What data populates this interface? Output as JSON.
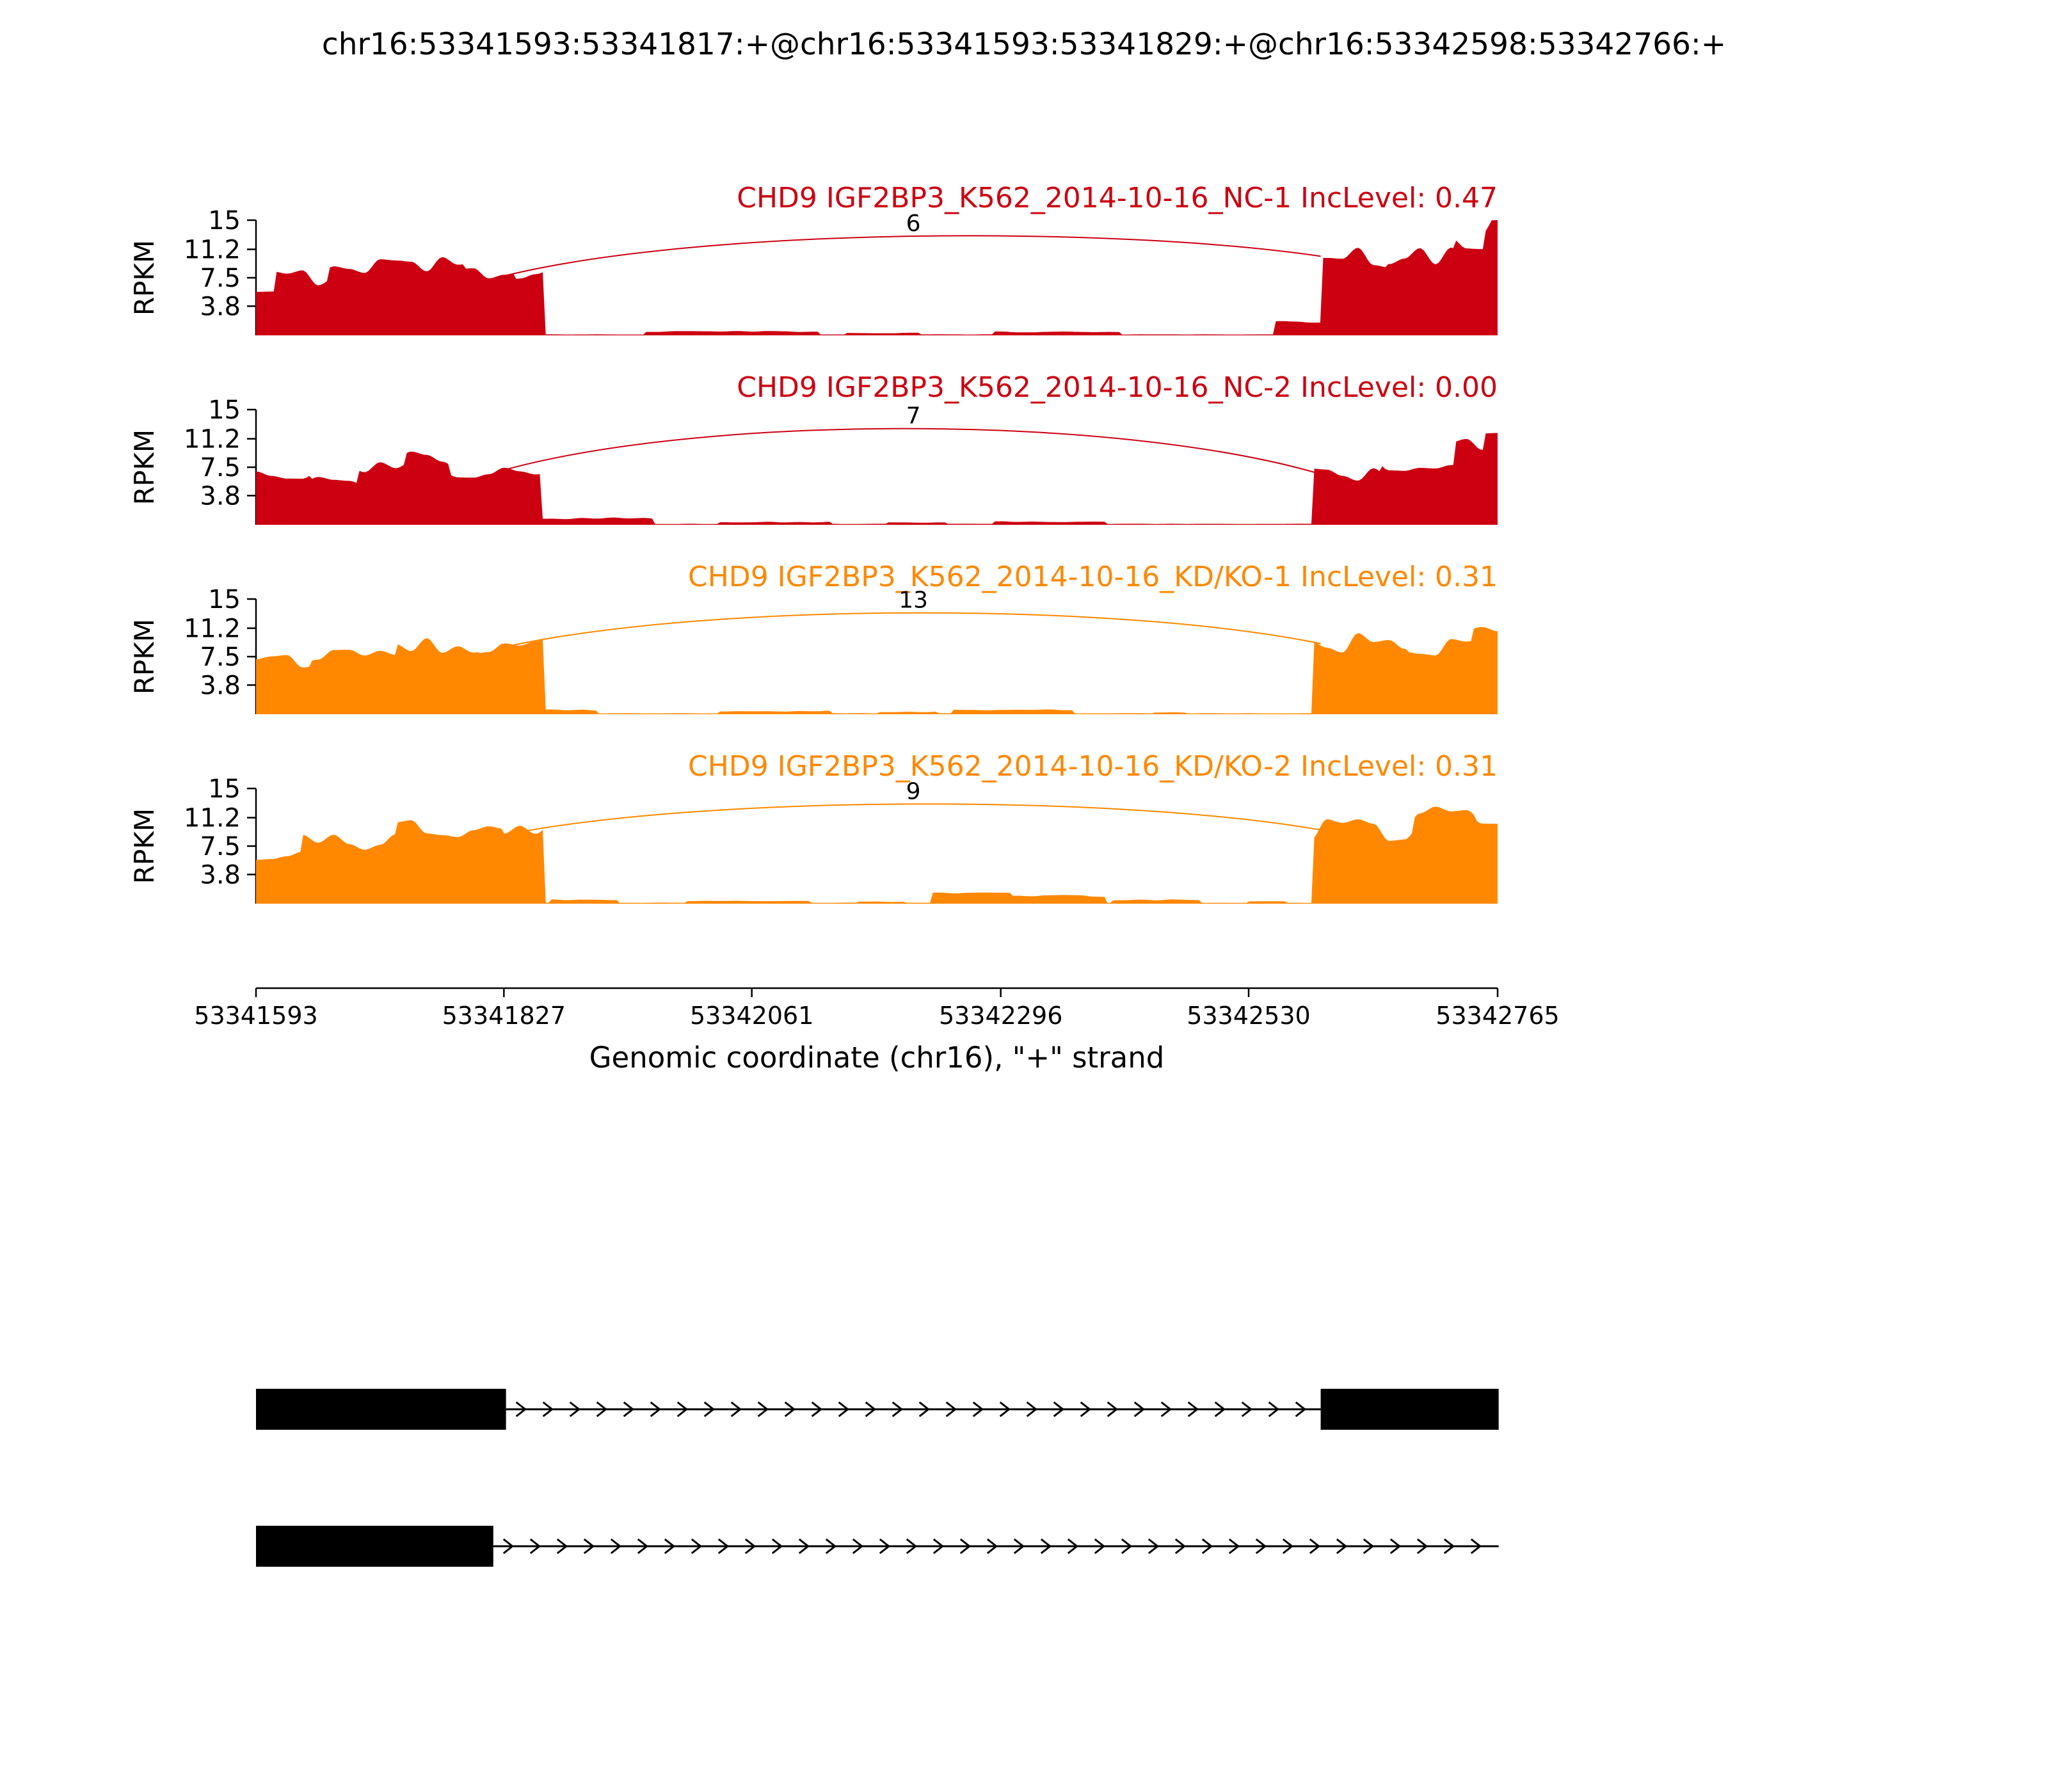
{
  "title": "chr16:53341593:53341817:+@chr16:53341593:53341829:+@chr16:53342598:53342766:+",
  "colors": {
    "group1": "#CC0011",
    "group2": "#FF8800",
    "text": "#000000"
  },
  "axis": {
    "ylabel": "RPKM",
    "yticks": [
      15,
      11.2,
      7.5,
      3.8
    ],
    "ymax": 15,
    "xlabel": "Genomic coordinate (chr16), \"+\" strand",
    "xticks": [
      53341593,
      53341827,
      53342061,
      53342296,
      53342530,
      53342765
    ],
    "xmin": 53341593,
    "xmax": 53342765
  },
  "chart_data": {
    "type": "area",
    "subtype": "sashimi-coverage",
    "x_units": "genomic coordinate (chr16, + strand)",
    "y_units": "RPKM",
    "tracks": [
      {
        "label": "CHD9 IGF2BP3_K562_2014-10-16_NC-1 IncLevel: 0.47",
        "inc_level": 0.47,
        "color": "#CC0011",
        "junction": {
          "start": 53341829,
          "end": 53342598,
          "count": 6,
          "start_rpkm": 7.8,
          "end_rpkm": 10.3,
          "apex_rpkm": 14.2
        },
        "coverage": [
          [
            53341593,
            53341612,
            5.2
          ],
          [
            53341612,
            53341660,
            7.6
          ],
          [
            53341660,
            53341790,
            9.2
          ],
          [
            53341790,
            53341838,
            8.6
          ],
          [
            53341838,
            53341864,
            7.8
          ],
          [
            53341960,
            53342125,
            0.5
          ],
          [
            53342150,
            53342220,
            0.32
          ],
          [
            53342290,
            53342410,
            0.45
          ],
          [
            53342555,
            53342598,
            1.7
          ],
          [
            53342598,
            53342660,
            10.3
          ],
          [
            53342660,
            53342725,
            10.8
          ],
          [
            53342725,
            53342752,
            12.0
          ],
          [
            53342752,
            53342766,
            14.2
          ]
        ]
      },
      {
        "label": "CHD9 IGF2BP3_K562_2014-10-16_NC-2 IncLevel: 0.00",
        "inc_level": 0.0,
        "color": "#CC0011",
        "junction": {
          "start": 53341829,
          "end": 53342598,
          "count": 7,
          "start_rpkm": 7.2,
          "end_rpkm": 6.6,
          "apex_rpkm": 14.4
        },
        "coverage": [
          [
            53341593,
            53341645,
            6.2
          ],
          [
            53341645,
            53341690,
            5.6
          ],
          [
            53341690,
            53341735,
            7.4
          ],
          [
            53341735,
            53341775,
            8.6
          ],
          [
            53341775,
            53341862,
            7.2
          ],
          [
            53341862,
            53341968,
            0.85
          ],
          [
            53342030,
            53342135,
            0.35
          ],
          [
            53342190,
            53342245,
            0.3
          ],
          [
            53342290,
            53342395,
            0.42
          ],
          [
            53342590,
            53342655,
            6.6
          ],
          [
            53342655,
            53342725,
            7.6
          ],
          [
            53342725,
            53342752,
            10.5
          ],
          [
            53342752,
            53342766,
            12.8
          ]
        ]
      },
      {
        "label": "CHD9 IGF2BP3_K562_2014-10-16_KD/KO-1 IncLevel: 0.31",
        "inc_level": 0.31,
        "color": "#FF8800",
        "junction": {
          "start": 53341829,
          "end": 53342598,
          "count": 13,
          "start_rpkm": 8.8,
          "end_rpkm": 9.2,
          "apex_rpkm": 14.6
        },
        "coverage": [
          [
            53341593,
            53341645,
            6.8
          ],
          [
            53341645,
            53341725,
            7.6
          ],
          [
            53341725,
            53341805,
            9.0
          ],
          [
            53341805,
            53341866,
            8.8
          ],
          [
            53341866,
            53341915,
            0.55
          ],
          [
            53342030,
            53342135,
            0.4
          ],
          [
            53342180,
            53342235,
            0.3
          ],
          [
            53342250,
            53342365,
            0.6
          ],
          [
            53342440,
            53342470,
            0.25
          ],
          [
            53342590,
            53342680,
            9.2
          ],
          [
            53342680,
            53342740,
            8.8
          ],
          [
            53342740,
            53342766,
            10.2
          ]
        ]
      },
      {
        "label": "CHD9 IGF2BP3_K562_2014-10-16_KD/KO-2 IncLevel: 0.31",
        "inc_level": 0.31,
        "color": "#FF8800",
        "junction": {
          "start": 53341829,
          "end": 53342598,
          "count": 9,
          "start_rpkm": 9.0,
          "end_rpkm": 9.6,
          "apex_rpkm": 14.2
        },
        "coverage": [
          [
            53341593,
            53341635,
            6.2
          ],
          [
            53341635,
            53341725,
            8.2
          ],
          [
            53341725,
            53341825,
            9.6
          ],
          [
            53341825,
            53341864,
            9.0
          ],
          [
            53341870,
            53341935,
            0.5
          ],
          [
            53342000,
            53342115,
            0.35
          ],
          [
            53342160,
            53342205,
            0.25
          ],
          [
            53342230,
            53342305,
            1.35
          ],
          [
            53342305,
            53342395,
            1.0
          ],
          [
            53342400,
            53342485,
            0.5
          ],
          [
            53342530,
            53342565,
            0.3
          ],
          [
            53342590,
            53342685,
            9.6
          ],
          [
            53342685,
            53342745,
            11.2
          ],
          [
            53342745,
            53342766,
            10.8
          ]
        ]
      }
    ],
    "isoforms": [
      {
        "exons": [
          [
            53341593,
            53341829
          ],
          [
            53342598,
            53342766
          ]
        ],
        "intron_line": [
          53341829,
          53342598
        ]
      },
      {
        "exons": [
          [
            53341593,
            53341817
          ]
        ],
        "intron_line": [
          53341817,
          53342766
        ]
      }
    ]
  }
}
